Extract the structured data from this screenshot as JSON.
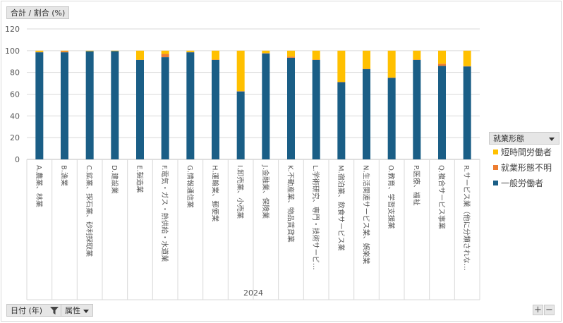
{
  "header": {
    "value_field_label": "合計 / 割合 (%)"
  },
  "footer": {
    "date_field_label": "日付 (年)",
    "attribute_field_label": "属性",
    "plus_label": "+",
    "minus_label": "−"
  },
  "legend": {
    "title": "就業形態",
    "items": [
      {
        "label": "短時間労働者",
        "color": "#ffc000"
      },
      {
        "label": "就業形態不明",
        "color": "#ed7d31"
      },
      {
        "label": "一般労働者",
        "color": "#1a5e86"
      }
    ]
  },
  "chart_data": {
    "type": "bar",
    "stacked": true,
    "year_label": "2024",
    "ylim": [
      0,
      120
    ],
    "yticks": [
      0,
      20,
      40,
      60,
      80,
      100,
      120
    ],
    "grid": true,
    "legend_position": "right",
    "categories": [
      "A.農業、林業",
      "B.漁業",
      "C.鉱業、採石業、砂利採取業",
      "D.建設業",
      "E.製造業",
      "F.電気・ガス・熱供給・水道業",
      "G.情報通信業",
      "H.運輸業、郵便業",
      "I.卸売業、小売業",
      "J.金融業、保険業",
      "K.不動産業、物品賃貸業",
      "L.学術研究、専門・技術サービ…",
      "M.宿泊業、飲食サービス業",
      "N.生活関連サービス業、娯楽業",
      "O.教育、学習支援業",
      "P.医療、福祉",
      "Q.複合サービス事業",
      "R.サービス業（他に分類されな…"
    ],
    "series": [
      {
        "name": "一般労働者",
        "color": "#1a5e86",
        "values": [
          98.5,
          98.5,
          99.5,
          99.6,
          91.5,
          94.0,
          98.5,
          91.5,
          62.5,
          97.5,
          93.5,
          91.5,
          71.0,
          83.0,
          75.0,
          91.5,
          86.0,
          85.5
        ]
      },
      {
        "name": "就業形態不明",
        "color": "#ed7d31",
        "values": [
          0.3,
          1.0,
          0.0,
          0.0,
          0.2,
          3.0,
          0.2,
          0.3,
          0.3,
          0.3,
          1.0,
          0.3,
          0.3,
          0.3,
          0.3,
          0.3,
          2.0,
          0.3
        ]
      },
      {
        "name": "短時間労働者",
        "color": "#ffc000",
        "values": [
          1.2,
          0.5,
          0.5,
          0.4,
          8.3,
          3.0,
          1.3,
          8.2,
          37.2,
          2.2,
          5.5,
          8.2,
          28.7,
          16.7,
          24.7,
          8.2,
          12.0,
          14.2
        ]
      }
    ]
  }
}
